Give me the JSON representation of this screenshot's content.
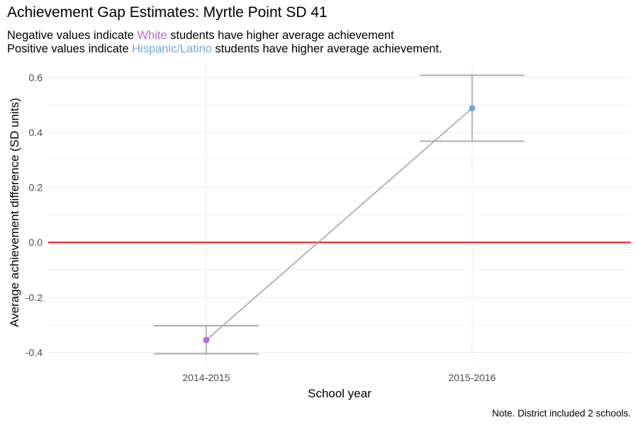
{
  "chart_data": {
    "type": "line",
    "title": "Achievement Gap Estimates: Myrtle Point SD 41",
    "subtitle_line1": {
      "prefix": "Negative values indicate ",
      "highlight": "White",
      "suffix": " students have higher average achievement"
    },
    "subtitle_line2": {
      "prefix": "Positive values indicate ",
      "highlight": "Hispanic/Latino",
      "suffix": " students have higher average achievement."
    },
    "xlabel": "School year",
    "ylabel": "Average achievement difference (SD units)",
    "caption": "Note. District included 2 schools.",
    "categories": [
      "2014-2015",
      "2015-2016"
    ],
    "values": [
      -0.355,
      0.488
    ],
    "ci_lower": [
      -0.405,
      0.368
    ],
    "ci_upper": [
      -0.303,
      0.608
    ],
    "point_colors": [
      "#C463E6",
      "#6FA7E8"
    ],
    "ylim": [
      -0.44,
      0.655
    ],
    "yticks": [
      -0.4,
      -0.2,
      0.0,
      0.2,
      0.4,
      0.6
    ],
    "ytick_labels": [
      "-0.4",
      "-0.2",
      "0.0",
      "0.2",
      "0.4",
      "0.6"
    ],
    "reference_line": 0,
    "reference_color": "#E31A1C",
    "line_color": "#A6A6A6",
    "grid": true
  }
}
